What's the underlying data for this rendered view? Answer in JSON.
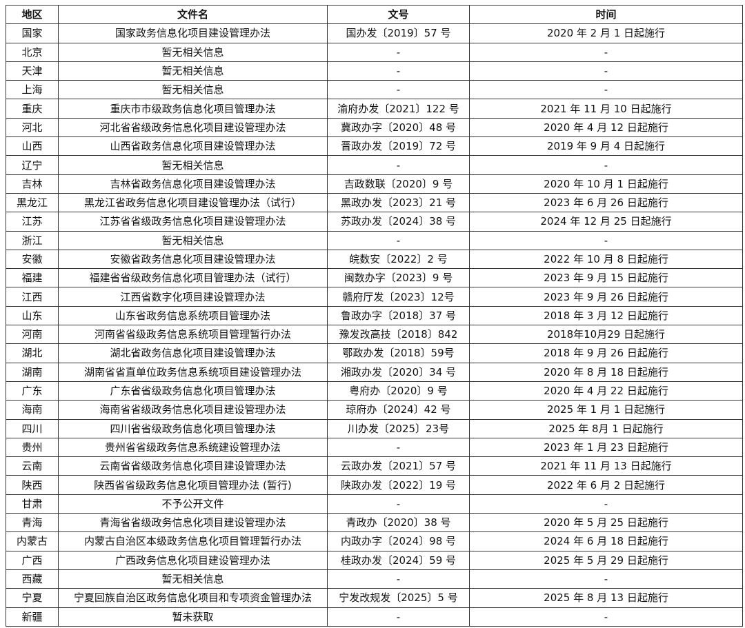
{
  "headers": [
    "地区",
    "文件名",
    "文号",
    "时间"
  ],
  "rows": [
    [
      "国家",
      "国家政务信息化项目建设管理办法",
      "国办发〔2019〕57 号",
      "2020 年 2 月 1 日起施行"
    ],
    [
      "北京",
      "暂无相关信息",
      "-",
      "-"
    ],
    [
      "天津",
      "暂无相关信息",
      "-",
      "-"
    ],
    [
      "上海",
      "暂无相关信息",
      "-",
      "-"
    ],
    [
      "重庆",
      "重庆市市级政务信息化项目管理办法",
      "渝府办发〔2021〕122 号",
      "2021 年 11 月 10 日起施行"
    ],
    [
      "河北",
      "河北省省级政务信息化项目建设管理办法",
      "冀政办字〔2020〕48 号",
      "2020 年 4 月 12 日起施行"
    ],
    [
      "山西",
      "山西省政务信息化项目建设管理办法",
      "晋政办发〔2019〕72 号",
      "2019 年 9 月 4 日起施行"
    ],
    [
      "辽宁",
      "暂无相关信息",
      "-",
      "-"
    ],
    [
      "吉林",
      "吉林省政务信息化项目建设管理办法",
      "吉政数联〔2020〕9 号",
      "2020 年 10 月 1 日起施行"
    ],
    [
      "黑龙江",
      "黑龙江省政务信息化项目建设管理办法（试行）",
      "黑政办发〔2023〕21 号",
      "2023 年 6 月 26 日起施行"
    ],
    [
      "江苏",
      "江苏省省级政务信息化项目建设管理办法",
      "苏政办发〔2024〕38 号",
      "2024 年 12 月 25 日起施行"
    ],
    [
      "浙江",
      "暂无相关信息",
      "-",
      "-"
    ],
    [
      "安徽",
      "安徽省政务信息化项目建设管理办法",
      "皖数安〔2022〕2 号",
      "2022 年 10 月 8 日起施行"
    ],
    [
      "福建",
      "福建省省级政务信息化项目管理办法（试行）",
      "闽数办字〔2023〕9 号",
      "2023 年 9 月 15 日起施行"
    ],
    [
      "江西",
      "江西省数字化项目建设管理办法",
      "赣府厅发〔2023〕12号",
      "2023 年 9 月 26 日起施行"
    ],
    [
      "山东",
      "山东省政务信息系统项目管理办法",
      "鲁政办字〔2018〕37 号",
      "2018 年 3 月 12 日起施行"
    ],
    [
      "河南",
      "河南省省级政务信息系统项目管理暂行办法",
      "豫发改高技〔2018〕842",
      "2018年10月29 日起施行"
    ],
    [
      "湖北",
      "湖北省政务信息化项目建设管理办法",
      "鄂政办发〔2018〕59号",
      "2018 年 9 月 26 日起施行"
    ],
    [
      "湖南",
      "湖南省省直单位政务信息系统项目建设管理办法",
      "湘政办发〔2020〕34 号",
      "2020 年 8 月 18 日起施行"
    ],
    [
      "广东",
      "广东省省级政务信息化项目管理办法",
      "粤府办〔2020〕9 号",
      "2020 年 4 月 22 日起施行"
    ],
    [
      "海南",
      "海南省省级政务信息化项目建设管理办法",
      "琼府办〔2024〕42 号",
      "2025 年 1 月 1 日起施行"
    ],
    [
      "四川",
      "四川省省级政务信息化项目管理办法",
      "川办发〔2025〕23号",
      "2025 年 8月 1 日起施行"
    ],
    [
      "贵州",
      "贵州省省级政务信息系统建设管理办法",
      "-",
      "2023 年 1 月 23 日起施行"
    ],
    [
      "云南",
      "云南省省级政务信息化项目建设管理办法",
      "云政办发〔2021〕57 号",
      "2021 年 11 月 13 日起施行"
    ],
    [
      "陕西",
      "陕西省省级政务信息化项目管理办法 (暂行)",
      "陕政办发〔2022〕19 号",
      "2022 年 6 月 2 日起施行"
    ],
    [
      "甘肃",
      "不予公开文件",
      "-",
      "-"
    ],
    [
      "青海",
      "青海省省级政务信息化项目建设管理办法",
      "青政办〔2020〕38 号",
      "2020 年 5 月 25 日起施行"
    ],
    [
      "内蒙古",
      "内蒙古自治区本级政务信息化项目管理暂行办法",
      "内政办字〔2024〕98 号",
      "2024 年 6 月 18 日起施行"
    ],
    [
      "广西",
      "广西政务信息化项目建设管理办法",
      "桂政办发〔2024〕59 号",
      "2025 年 5 月 29 日起施行"
    ],
    [
      "西藏",
      "暂无相关信息",
      "-",
      "-"
    ],
    [
      "宁夏",
      "宁夏回族自治区政务信息化项目和专项资金管理办法",
      "宁发改规发〔2025〕5 号",
      "2025 年 8 月 13 日起施行"
    ],
    [
      "新疆",
      "暂未获取",
      "-",
      "-"
    ]
  ]
}
